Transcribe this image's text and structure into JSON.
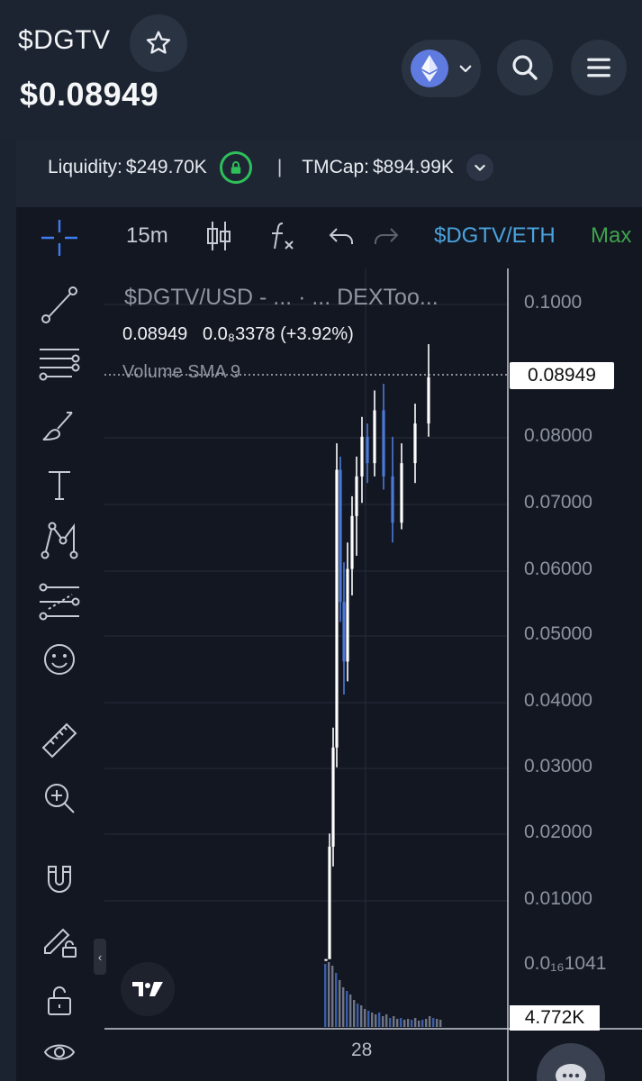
{
  "header": {
    "token_name": "$DGTV",
    "price": "$0.08949"
  },
  "stats": {
    "liquidity_label": "Liquidity:",
    "liquidity_value": "$249.70K",
    "separator": "|",
    "tmcap_label": "TMCap:",
    "tmcap_value": "$894.99K"
  },
  "chart_toolbar": {
    "interval": "15m",
    "pair": "$DGTV/ETH",
    "max_label": "Max"
  },
  "chart": {
    "symbol_title": "$DGTV/USD - ...  · ...  DEXToo...",
    "last_price": "0.08949",
    "change": "0.0₈3378",
    "change_pct": "(+3.92%)",
    "volume_label": "Volume SMA 9",
    "price_tag": "0.08949",
    "volume_tag": "4.772K",
    "x_label": "28"
  },
  "chart_data": {
    "type": "candlestick",
    "y_ticks": [
      "0.1000",
      "0.08000",
      "0.07000",
      "0.06000",
      "0.05000",
      "0.04000",
      "0.03000",
      "0.02000",
      "0.01000",
      "0.0₁₆1041"
    ],
    "ylim": [
      0,
      0.1
    ],
    "x_ticks": [
      "28"
    ],
    "last_price": 0.08949,
    "volume_last": "4.772K",
    "ohlc_approx": [
      [
        0.001,
        0.001,
        0.001,
        0.001
      ],
      [
        0.001,
        0.02,
        0.001,
        0.018
      ],
      [
        0.018,
        0.036,
        0.015,
        0.033
      ],
      [
        0.033,
        0.079,
        0.03,
        0.075
      ],
      [
        0.075,
        0.077,
        0.052,
        0.055
      ],
      [
        0.055,
        0.061,
        0.041,
        0.046
      ],
      [
        0.046,
        0.064,
        0.043,
        0.06
      ],
      [
        0.06,
        0.071,
        0.056,
        0.068
      ],
      [
        0.068,
        0.077,
        0.062,
        0.074
      ],
      [
        0.074,
        0.083,
        0.07,
        0.08
      ],
      [
        0.08,
        0.082,
        0.073,
        0.076
      ],
      [
        0.076,
        0.087,
        0.074,
        0.084
      ],
      [
        0.084,
        0.088,
        0.072,
        0.074
      ],
      [
        0.074,
        0.08,
        0.064,
        0.067
      ],
      [
        0.067,
        0.079,
        0.066,
        0.076
      ],
      [
        0.076,
        0.085,
        0.073,
        0.082
      ],
      [
        0.082,
        0.094,
        0.08,
        0.089
      ]
    ]
  },
  "colors": {
    "bg": "#131722",
    "header_bg": "#1c2431",
    "accent_blue": "#4aa3df",
    "green": "#2fbf5a",
    "candle_up": "#ffffff",
    "candle_down": "#4b79d8"
  }
}
